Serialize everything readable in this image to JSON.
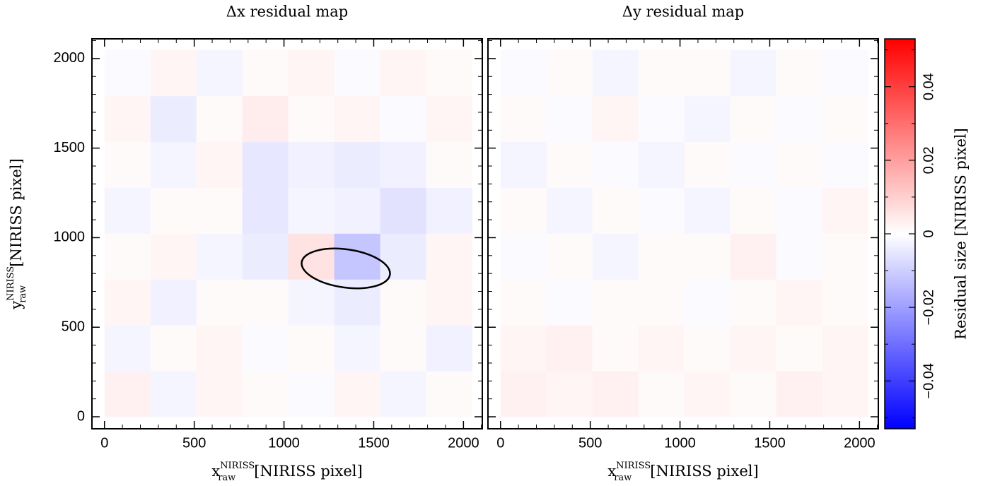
{
  "chart_data": [
    {
      "type": "heatmap",
      "title": "Δx residual map",
      "x_label": {
        "base": "x",
        "sub": "raw",
        "sup": "NIRISS",
        "unit": "[NIRISS pixel]"
      },
      "y_label": {
        "base": "y",
        "sub": "raw",
        "sup": "NIRISS",
        "unit": "[NIRISS pixel]"
      },
      "xlim": [
        -70,
        2105
      ],
      "ylim": [
        -67,
        2110
      ],
      "xticks": [
        0,
        500,
        1000,
        1500,
        2000
      ],
      "yticks": [
        0,
        500,
        1000,
        1500,
        2000
      ],
      "show_ytick_labels": true,
      "minor_ticks": [
        100,
        200,
        300,
        400,
        600,
        700,
        800,
        900,
        1100,
        1200,
        1300,
        1400,
        1600,
        1700,
        1800,
        1900,
        2100
      ],
      "x_edges": [
        0,
        256,
        512,
        768,
        1024,
        1280,
        1536,
        1792,
        2048
      ],
      "y_edges": [
        0,
        256,
        512,
        768,
        1024,
        1280,
        1536,
        1792,
        2048
      ],
      "values": [
        [
          0.003,
          -0.002,
          0.002,
          0.001,
          -0.001,
          0.002,
          -0.002,
          0.001
        ],
        [
          -0.002,
          0.001,
          0.002,
          -0.001,
          0.001,
          -0.002,
          0.001,
          -0.003
        ],
        [
          0.002,
          -0.003,
          0.001,
          0.001,
          -0.002,
          -0.004,
          0.001,
          0.002
        ],
        [
          0.001,
          0.002,
          -0.002,
          -0.004,
          0.006,
          -0.012,
          -0.004,
          0.002
        ],
        [
          -0.002,
          0.001,
          0.001,
          -0.005,
          -0.002,
          -0.003,
          -0.006,
          -0.003
        ],
        [
          0.001,
          -0.002,
          0.002,
          -0.005,
          -0.003,
          -0.004,
          -0.003,
          0.001
        ],
        [
          0.002,
          -0.004,
          0.001,
          0.004,
          0.001,
          0.002,
          -0.001,
          0.002
        ],
        [
          -0.001,
          0.002,
          -0.002,
          0.001,
          0.002,
          -0.001,
          0.002,
          0.001
        ]
      ]
    },
    {
      "type": "heatmap",
      "title": "Δy residual map",
      "x_label": {
        "base": "x",
        "sub": "raw",
        "sup": "NIRISS",
        "unit": "[NIRISS pixel]"
      },
      "xlim": [
        -70,
        2105
      ],
      "ylim": [
        -67,
        2110
      ],
      "xticks": [
        0,
        500,
        1000,
        1500,
        2000
      ],
      "yticks": [
        0,
        500,
        1000,
        1500,
        2000
      ],
      "show_ytick_labels": false,
      "minor_ticks": [
        100,
        200,
        300,
        400,
        600,
        700,
        800,
        900,
        1100,
        1200,
        1300,
        1400,
        1600,
        1700,
        1800,
        1900,
        2100
      ],
      "x_edges": [
        0,
        256,
        512,
        768,
        1024,
        1280,
        1536,
        1792,
        2048
      ],
      "y_edges": [
        0,
        256,
        512,
        768,
        1024,
        1280,
        1536,
        1792,
        2048
      ],
      "values": [
        [
          0.003,
          0.002,
          0.003,
          0.001,
          0.002,
          0.001,
          0.003,
          0.002
        ],
        [
          0.002,
          0.003,
          0.001,
          0.002,
          0.001,
          0.002,
          0.001,
          0.002
        ],
        [
          0.001,
          -0.001,
          0.001,
          0.001,
          -0.001,
          0.001,
          0.002,
          0.001
        ],
        [
          -0.001,
          0.001,
          -0.002,
          0.001,
          0.001,
          0.003,
          -0.001,
          0.001
        ],
        [
          0.001,
          -0.002,
          0.001,
          -0.001,
          -0.002,
          0.001,
          -0.001,
          0.002
        ],
        [
          -0.002,
          0.001,
          -0.001,
          -0.002,
          0.001,
          -0.001,
          0.001,
          -0.001
        ],
        [
          0.001,
          -0.001,
          0.002,
          -0.001,
          -0.002,
          0.001,
          -0.001,
          0.001
        ],
        [
          -0.001,
          0.001,
          -0.002,
          0.001,
          0.001,
          -0.002,
          0.001,
          -0.001
        ]
      ]
    },
    {
      "type": "colorbar",
      "label": "Residual size [NIRISS pixel]",
      "clim": [
        -0.053,
        0.053
      ],
      "ticks": [
        {
          "value": -0.04,
          "label": "−0.04"
        },
        {
          "value": -0.02,
          "label": "−0.02"
        },
        0,
        0.02,
        0.04
      ],
      "minor_ticks": [
        -0.05,
        -0.03,
        -0.01,
        0.01,
        0.03,
        0.05
      ],
      "colors": [
        "#0000ff",
        "#ffffff",
        "#ff0000"
      ]
    }
  ]
}
